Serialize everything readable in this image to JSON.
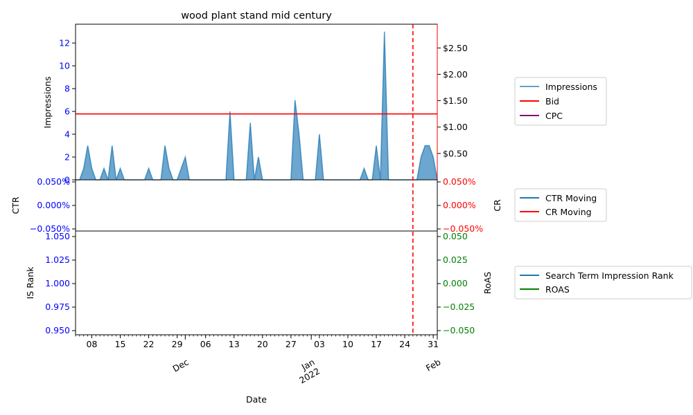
{
  "chart_data": [
    {
      "type": "area",
      "title": "wood plant stand mid century",
      "ylabel": "Impressions",
      "ylabel_right": "",
      "ylim": [
        0,
        13.65
      ],
      "yticks": [
        0,
        2,
        4,
        6,
        8,
        10,
        12
      ],
      "yticks_right": [
        "$0.50",
        "$1.00",
        "$1.50",
        "$2.00",
        "$2.50"
      ],
      "yticks_right_values": [
        0.5,
        1.0,
        1.5,
        2.0,
        2.5
      ],
      "ylim_right": [
        0,
        2.95
      ],
      "x_start": "2021-11-04",
      "x_end": "2022-02-01",
      "impressions": [
        [
          "2021-11-04",
          0
        ],
        [
          "2021-11-05",
          0
        ],
        [
          "2021-11-06",
          1
        ],
        [
          "2021-11-07",
          3
        ],
        [
          "2021-11-08",
          1
        ],
        [
          "2021-11-09",
          0
        ],
        [
          "2021-11-10",
          0
        ],
        [
          "2021-11-11",
          1
        ],
        [
          "2021-11-12",
          0
        ],
        [
          "2021-11-13",
          3
        ],
        [
          "2021-11-14",
          0
        ],
        [
          "2021-11-15",
          1
        ],
        [
          "2021-11-16",
          0
        ],
        [
          "2021-11-21",
          0
        ],
        [
          "2021-11-22",
          1
        ],
        [
          "2021-11-23",
          0
        ],
        [
          "2021-11-25",
          0
        ],
        [
          "2021-11-26",
          3
        ],
        [
          "2021-11-27",
          1
        ],
        [
          "2021-11-28",
          0
        ],
        [
          "2021-11-29",
          0
        ],
        [
          "2021-11-30",
          1
        ],
        [
          "2021-12-01",
          2
        ],
        [
          "2021-12-02",
          0
        ],
        [
          "2021-12-11",
          0
        ],
        [
          "2021-12-12",
          6
        ],
        [
          "2021-12-13",
          0
        ],
        [
          "2021-12-16",
          0
        ],
        [
          "2021-12-17",
          5
        ],
        [
          "2021-12-18",
          0
        ],
        [
          "2021-12-19",
          2
        ],
        [
          "2021-12-20",
          0
        ],
        [
          "2021-12-27",
          0
        ],
        [
          "2021-12-28",
          7
        ],
        [
          "2021-12-29",
          4
        ],
        [
          "2021-12-30",
          0
        ],
        [
          "2022-01-02",
          0
        ],
        [
          "2022-01-03",
          4
        ],
        [
          "2022-01-04",
          0
        ],
        [
          "2022-01-13",
          0
        ],
        [
          "2022-01-14",
          1
        ],
        [
          "2022-01-15",
          0
        ],
        [
          "2022-01-16",
          0
        ],
        [
          "2022-01-17",
          3
        ],
        [
          "2022-01-18",
          0
        ],
        [
          "2022-01-19",
          13
        ],
        [
          "2022-01-20",
          0
        ],
        [
          "2022-01-27",
          0
        ],
        [
          "2022-01-28",
          2
        ],
        [
          "2022-01-29",
          3
        ],
        [
          "2022-01-30",
          3
        ],
        [
          "2022-01-31",
          2
        ],
        [
          "2022-02-01",
          0
        ]
      ],
      "bid": 1.25,
      "vline_date": "2022-01-26",
      "legend": [
        "Impressions",
        "Bid",
        "CPC"
      ],
      "legend_placement": "right",
      "colors": {
        "impressions": "#1f77b4",
        "bid": "#ff0000",
        "cpc": "#800080",
        "vline": "#ff0000"
      }
    },
    {
      "type": "line",
      "ylabel": "CTR",
      "ylabel_right": "CR",
      "yticks": [
        "0.050%",
        "0.000%",
        "−0.050%"
      ],
      "yticks_right": [
        "0.050%",
        "0.000%",
        "−0.050%"
      ],
      "ylim": [
        -0.05,
        0.05
      ],
      "legend": [
        "CTR Moving",
        "CR Moving"
      ],
      "colors": {
        "ctr": "#1f77b4",
        "cr": "#ff0000"
      }
    },
    {
      "type": "line",
      "ylabel": "IS Rank",
      "ylabel_right": "RoAS",
      "yticks": [
        "1.050",
        "1.025",
        "1.000",
        "0.975",
        "0.950"
      ],
      "yticks_right": [
        "0.050",
        "0.025",
        "0.000",
        "−0.025",
        "−0.050"
      ],
      "ylim": [
        0.945,
        1.055
      ],
      "xlabel": "Date",
      "xtick_labels": [
        "08",
        "15",
        "22",
        "29",
        "06",
        "13",
        "20",
        "27",
        "03",
        "10",
        "17",
        "24",
        "31"
      ],
      "xtick_dates": [
        "2021-11-08",
        "2021-11-15",
        "2021-11-22",
        "2021-11-29",
        "2021-12-06",
        "2021-12-13",
        "2021-12-20",
        "2021-12-27",
        "2022-01-03",
        "2022-01-10",
        "2022-01-17",
        "2022-01-24",
        "2022-01-31"
      ],
      "month_labels": [
        {
          "text": "Dec",
          "date": "2021-12-01"
        },
        {
          "text": "Jan\n2022",
          "date": "2022-01-01"
        },
        {
          "text": "Feb",
          "date": "2022-02-01"
        }
      ],
      "legend": [
        "Search Term Impression Rank",
        "ROAS"
      ],
      "colors": {
        "is_rank": "#1f77b4",
        "roas": "#008000"
      }
    }
  ]
}
